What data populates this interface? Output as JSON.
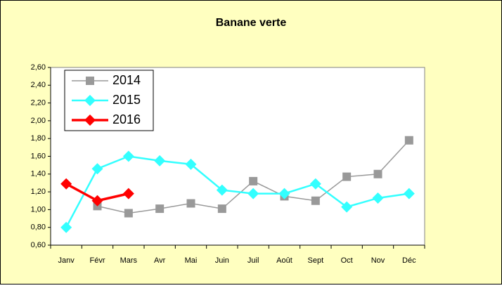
{
  "chart_data": {
    "type": "line",
    "title": "Banane verte",
    "categories": [
      "Janv",
      "Févr",
      "Mars",
      "Avr",
      "Mai",
      "Juin",
      "Juil",
      "Août",
      "Sept",
      "Oct",
      "Nov",
      "Déc"
    ],
    "series": [
      {
        "name": "2014",
        "color": "#999999",
        "marker": "square",
        "values": [
          null,
          1.04,
          0.96,
          1.01,
          1.07,
          1.01,
          1.32,
          1.15,
          1.1,
          1.37,
          1.4,
          1.78
        ]
      },
      {
        "name": "2015",
        "color": "#33ffff",
        "marker": "diamond",
        "values": [
          0.8,
          1.46,
          1.6,
          1.55,
          1.51,
          1.22,
          1.18,
          1.18,
          1.29,
          1.03,
          1.13,
          1.18
        ]
      },
      {
        "name": "2016",
        "color": "#ff0000",
        "marker": "diamond",
        "values": [
          1.29,
          1.1,
          1.18,
          null,
          null,
          null,
          null,
          null,
          null,
          null,
          null,
          null
        ]
      }
    ],
    "ylim": [
      0.6,
      2.6
    ],
    "yticks": [
      {
        "value": 0.6,
        "label": "0,60"
      },
      {
        "value": 0.8,
        "label": "0,80"
      },
      {
        "value": 1.0,
        "label": "1,00"
      },
      {
        "value": 1.2,
        "label": "1,20"
      },
      {
        "value": 1.4,
        "label": "1,40"
      },
      {
        "value": 1.6,
        "label": "1,60"
      },
      {
        "value": 1.8,
        "label": "1,80"
      },
      {
        "value": 2.0,
        "label": "2,00"
      },
      {
        "value": 2.2,
        "label": "2,20"
      },
      {
        "value": 2.4,
        "label": "2,40"
      },
      {
        "value": 2.6,
        "label": "2,60"
      }
    ],
    "grid": false,
    "legend": "upper left"
  }
}
